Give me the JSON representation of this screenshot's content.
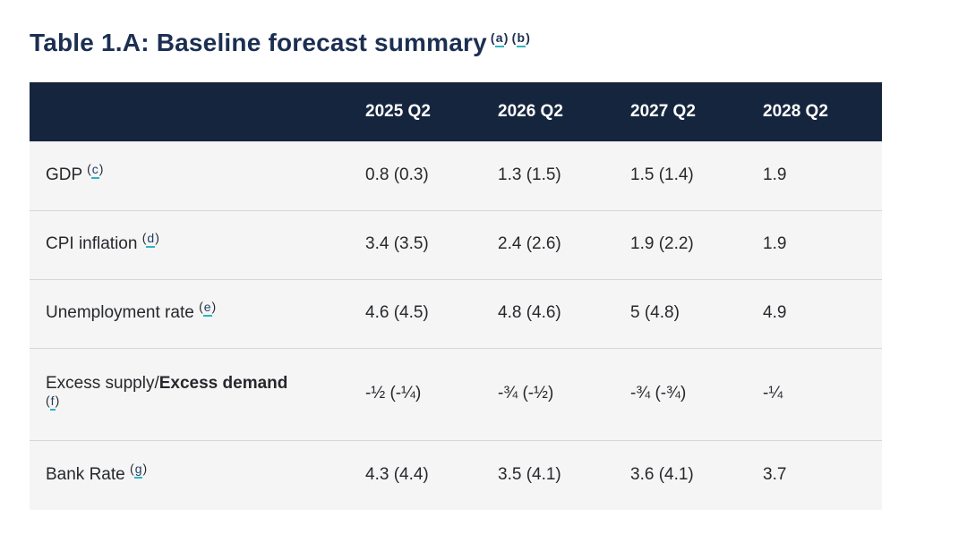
{
  "title": {
    "text": "Table 1.A: Baseline forecast summary",
    "footnotes": [
      "a",
      "b"
    ]
  },
  "footnote_wrap": [
    "(",
    ")"
  ],
  "table": {
    "columns": [
      "2025 Q2",
      "2026 Q2",
      "2027 Q2",
      "2028 Q2"
    ],
    "rows": [
      {
        "label": "GDP",
        "footnote": "c",
        "values": [
          "0.8 (0.3)",
          "1.3 (1.5)",
          "1.5 (1.4)",
          "1.9"
        ]
      },
      {
        "label": "CPI inflation",
        "footnote": "d",
        "values": [
          "3.4 (3.5)",
          "2.4 (2.6)",
          "1.9 (2.2)",
          "1.9"
        ]
      },
      {
        "label": "Unemployment rate",
        "footnote": "e",
        "values": [
          "4.6 (4.5)",
          "4.8 (4.6)",
          "5 (4.8)",
          "4.9"
        ]
      },
      {
        "label": "Excess supply/",
        "label_bold": "Excess demand",
        "footnote": "f",
        "footnote_own_line": true,
        "values": [
          "-½ (-¼)",
          "-¾ (-½)",
          "-¾ (-¾)",
          "-¼"
        ]
      },
      {
        "label": "Bank Rate",
        "footnote": "g",
        "values": [
          "4.3 (4.4)",
          "3.5 (4.1)",
          "3.6 (4.1)",
          "3.7"
        ]
      }
    ]
  },
  "colors": {
    "title_color": "#1B2F52",
    "header_bg": "#16253E",
    "header_text": "#FFFFFF",
    "row_bg": "#F5F5F6",
    "divider": "#D2D7DD",
    "teal": "#2CB4BF",
    "body_text": "#26282B",
    "fn_letter": "#1D4064"
  }
}
